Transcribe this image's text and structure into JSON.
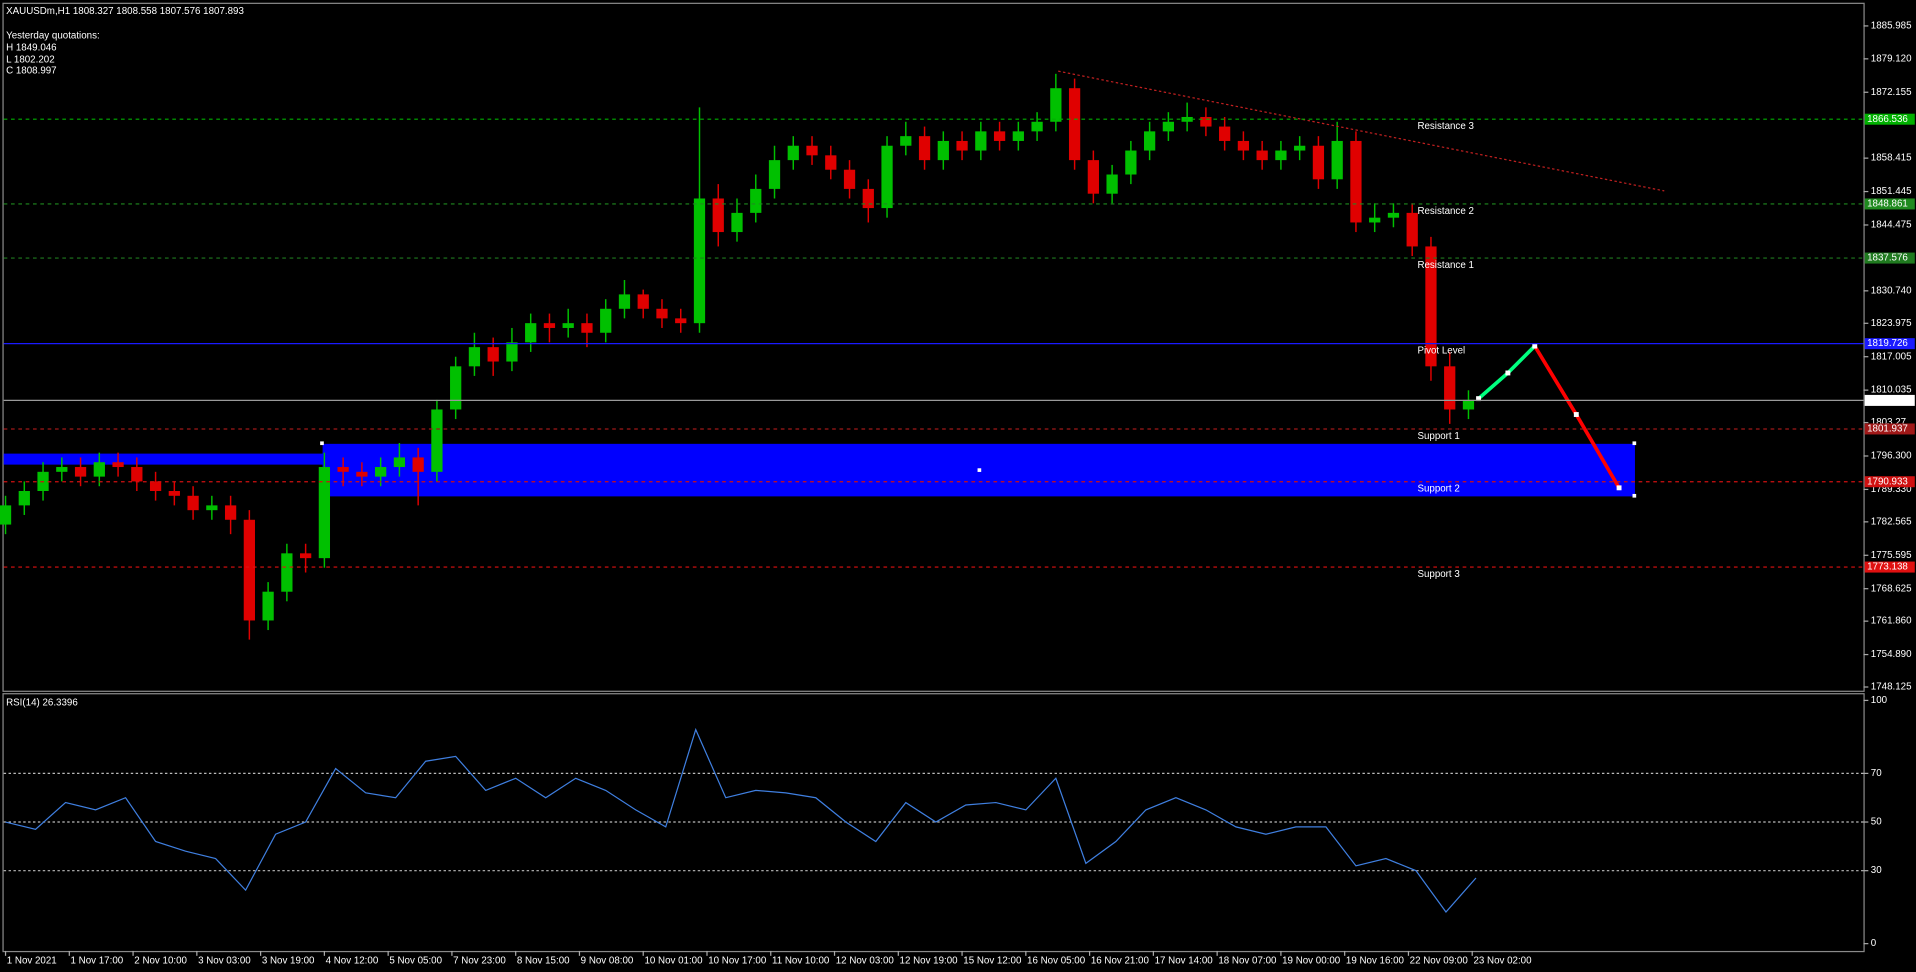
{
  "chart_data": [
    {
      "type": "candlestick",
      "title": "XAUUSDm,H1  1808.327 1808.558 1807.576 1807.893",
      "annotations": [
        "Yesterday quotations:",
        "H 1849.046",
        "L 1802.202",
        "C 1808.997"
      ],
      "x": [
        0,
        5,
        10,
        15,
        20,
        25,
        30,
        35,
        40,
        45,
        50,
        55,
        60,
        65,
        70,
        75,
        80,
        85,
        90,
        95,
        100,
        105,
        110,
        115,
        120,
        125,
        130,
        135,
        140,
        145,
        150,
        155,
        160,
        165,
        170,
        175,
        180,
        185,
        190,
        195,
        200,
        205,
        210,
        215,
        220,
        225,
        230,
        235,
        240,
        245,
        250,
        255,
        260,
        265,
        270,
        275,
        280,
        285,
        290,
        295,
        300,
        305,
        310,
        315,
        320,
        325,
        330,
        335,
        340,
        345,
        350,
        355,
        360,
        365,
        370,
        375,
        380,
        385,
        390
      ],
      "open": [
        1782,
        1786,
        1789,
        1793,
        1794,
        1792,
        1795,
        1794,
        1791,
        1789,
        1788,
        1785,
        1786,
        1783,
        1762,
        1768,
        1776,
        1775,
        1794,
        1793,
        1792,
        1794,
        1796,
        1793,
        1806,
        1815,
        1819,
        1816,
        1820,
        1824,
        1823,
        1824,
        1822,
        1827,
        1830,
        1827,
        1825,
        1824,
        1850,
        1843,
        1847,
        1852,
        1858,
        1861,
        1859,
        1856,
        1852,
        1848,
        1861,
        1863,
        1858,
        1862,
        1860,
        1864,
        1862,
        1864,
        1866,
        1873,
        1858,
        1851,
        1855,
        1860,
        1864,
        1866,
        1867,
        1865,
        1862,
        1860,
        1858,
        1860,
        1861,
        1854,
        1862,
        1845,
        1846,
        1847,
        1840,
        1815,
        1806
      ],
      "high": [
        1788,
        1791,
        1795,
        1796,
        1796,
        1797,
        1797,
        1796,
        1793,
        1791,
        1790,
        1788,
        1788,
        1785,
        1770,
        1778,
        1778,
        1797,
        1796,
        1795,
        1796,
        1799,
        1798,
        1808,
        1817,
        1822,
        1821,
        1823,
        1826,
        1826,
        1827,
        1826,
        1829,
        1833,
        1831,
        1829,
        1827,
        1869,
        1853,
        1850,
        1855,
        1861,
        1863,
        1863,
        1861,
        1858,
        1854,
        1863,
        1866,
        1865,
        1864,
        1864,
        1866,
        1866,
        1866,
        1868,
        1876,
        1875,
        1860,
        1857,
        1862,
        1866,
        1868,
        1870,
        1869,
        1867,
        1864,
        1862,
        1862,
        1863,
        1863,
        1866,
        1864,
        1849,
        1849,
        1849,
        1842,
        1818,
        1810
      ],
      "low": [
        1780,
        1784,
        1787,
        1791,
        1790,
        1790,
        1792,
        1789,
        1787,
        1786,
        1783,
        1783,
        1780,
        1758,
        1760,
        1766,
        1772,
        1773,
        1790,
        1790,
        1790,
        1792,
        1786,
        1791,
        1804,
        1813,
        1813,
        1814,
        1818,
        1820,
        1821,
        1819,
        1820,
        1825,
        1825,
        1823,
        1822,
        1822,
        1840,
        1841,
        1845,
        1850,
        1856,
        1857,
        1854,
        1850,
        1845,
        1846,
        1859,
        1856,
        1856,
        1858,
        1858,
        1860,
        1860,
        1862,
        1864,
        1856,
        1849,
        1849,
        1853,
        1858,
        1862,
        1864,
        1863,
        1860,
        1858,
        1856,
        1856,
        1858,
        1852,
        1852,
        1843,
        1843,
        1844,
        1838,
        1812,
        1803,
        1804
      ],
      "close": [
        1786,
        1789,
        1793,
        1794,
        1792,
        1795,
        1794,
        1791,
        1789,
        1788,
        1785,
        1786,
        1783,
        1762,
        1768,
        1776,
        1775,
        1794,
        1793,
        1792,
        1794,
        1796,
        1793,
        1806,
        1815,
        1819,
        1816,
        1820,
        1824,
        1823,
        1824,
        1822,
        1827,
        1830,
        1827,
        1825,
        1824,
        1850,
        1843,
        1847,
        1852,
        1858,
        1861,
        1859,
        1856,
        1852,
        1848,
        1861,
        1863,
        1858,
        1862,
        1860,
        1864,
        1862,
        1864,
        1866,
        1873,
        1858,
        1851,
        1855,
        1860,
        1864,
        1866,
        1867,
        1865,
        1862,
        1860,
        1858,
        1860,
        1861,
        1854,
        1862,
        1845,
        1846,
        1847,
        1840,
        1815,
        1806,
        1808
      ],
      "up_color": "#00c000",
      "down_color": "#e00000",
      "xlim": [
        -0.5,
        495.3
      ],
      "xticks": [
        {
          "value": 0,
          "label": "1 Nov 2021"
        },
        {
          "value": 17,
          "label": "1 Nov 17:00"
        },
        {
          "value": 34,
          "label": "2 Nov 10:00"
        },
        {
          "value": 51,
          "label": "3 Nov 03:00"
        },
        {
          "value": 68,
          "label": "3 Nov 19:00"
        },
        {
          "value": 85,
          "label": "4 Nov 12:00"
        },
        {
          "value": 102,
          "label": "5 Nov 05:00"
        },
        {
          "value": 119,
          "label": "7 Nov 23:00"
        },
        {
          "value": 136,
          "label": "8 Nov 15:00"
        },
        {
          "value": 153,
          "label": "9 Nov 08:00"
        },
        {
          "value": 170,
          "label": "10 Nov 01:00"
        },
        {
          "value": 187,
          "label": "10 Nov 17:00"
        },
        {
          "value": 204,
          "label": "11 Nov 10:00"
        },
        {
          "value": 221,
          "label": "12 Nov 03:00"
        },
        {
          "value": 238,
          "label": "12 Nov 19:00"
        },
        {
          "value": 255,
          "label": "15 Nov 12:00"
        },
        {
          "value": 272,
          "label": "16 Nov 05:00"
        },
        {
          "value": 289,
          "label": "16 Nov 21:00"
        },
        {
          "value": 306,
          "label": "17 Nov 14:00"
        },
        {
          "value": 323,
          "label": "18 Nov 07:00"
        },
        {
          "value": 340,
          "label": "19 Nov 00:00"
        },
        {
          "value": 357,
          "label": "19 Nov 16:00"
        },
        {
          "value": 374,
          "label": "22 Nov 09:00"
        },
        {
          "value": 391,
          "label": "23 Nov 02:00"
        }
      ],
      "ylim": [
        1747.36,
        1890.57
      ],
      "yticks": [
        1885.985,
        {
          "value": 1879.12,
          "label": "1879.120"
        },
        1872.155,
        1858.415,
        1851.445,
        1844.475,
        {
          "value": 1830.74,
          "label": "1830.740"
        },
        1823.975,
        1817.005,
        1810.035,
        1803.27,
        {
          "value": 1796.3,
          "label": "1796.300"
        },
        {
          "value": 1789.33,
          "label": "1789.330"
        },
        1782.565,
        1775.595,
        1768.625,
        {
          "value": 1761.86,
          "label": "1761.860"
        },
        {
          "value": 1754.89,
          "label": "1754.890"
        },
        1748.125
      ],
      "levels": [
        {
          "name": "Resistance 3",
          "value": 1866.536,
          "color": "#00b000",
          "text_color": "#00e000",
          "style": "dashed"
        },
        {
          "name": "Resistance 2",
          "value": 1848.861,
          "color": "#1f8a1f",
          "text_color": "#2e8b2e",
          "style": "dashed"
        },
        {
          "name": "Resistance 1",
          "value": 1837.576,
          "color": "#1f7a1f",
          "text_color": "#1e6b1e",
          "style": "dashed"
        },
        {
          "name": "Pivot Level",
          "value": 1819.726,
          "color": "#1a1aff",
          "text_color": "#2030ff",
          "style": "solid"
        },
        {
          "name": "Support 1",
          "value": 1801.937,
          "color": "#a01818",
          "text_color": "#8b1a1a",
          "style": "dashed"
        },
        {
          "name": "Support 2",
          "value": 1790.933,
          "color": "#d01010",
          "text_color": "#c000c0",
          "style": "dashed"
        },
        {
          "name": "Support 3",
          "value": 1773.138,
          "color": "#e01010",
          "text_color": "#d01010",
          "style": "dashed"
        }
      ],
      "current_price": 1807.893
    },
    {
      "type": "line",
      "title": "RSI(14) 26.3396",
      "x": [
        0,
        8,
        16,
        24,
        32,
        40,
        48,
        56,
        64,
        72,
        80,
        88,
        96,
        104,
        112,
        120,
        128,
        136,
        144,
        152,
        160,
        168,
        176,
        184,
        192,
        200,
        208,
        216,
        224,
        232,
        240,
        248,
        256,
        264,
        272,
        280,
        288,
        296,
        304,
        312,
        320,
        328,
        336,
        344,
        352,
        360,
        368,
        376,
        384,
        392
      ],
      "values": [
        50,
        47,
        58,
        55,
        60,
        42,
        38,
        35,
        22,
        45,
        50,
        72,
        62,
        60,
        75,
        77,
        63,
        68,
        60,
        68,
        63,
        55,
        48,
        88,
        60,
        63,
        62,
        60,
        50,
        42,
        58,
        50,
        57,
        58,
        55,
        68,
        33,
        42,
        55,
        60,
        55,
        48,
        45,
        48,
        48,
        32,
        35,
        30,
        13,
        27
      ],
      "color": "#3f7fe0",
      "ylim": [
        -3,
        102.5
      ],
      "yticks": [
        100,
        70,
        50,
        30,
        0
      ],
      "levels": [
        70,
        50,
        30
      ]
    }
  ]
}
